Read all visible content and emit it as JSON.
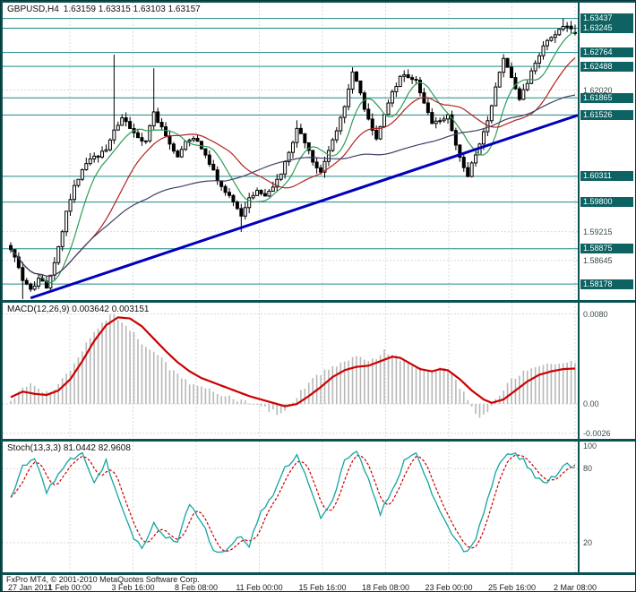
{
  "header": {
    "symbol": "GBPUSD,H4",
    "ohlc": "1.63159 1.63315 1.63103 1.63157"
  },
  "footer": {
    "copyright": "FxPro MT4, © 2001-2010 MetaQuotes Software Corp."
  },
  "colors": {
    "frame": "#0b5353",
    "grid": "#d9d9d9",
    "level_line": "#1d8a84",
    "badge_bg": "#0e6262",
    "badge_text": "#ffffff",
    "candle_border": "#000000",
    "candle_up_fill": "#ffffff",
    "candle_down_fill": "#000000",
    "ma_fast": "#2e9b57",
    "ma_mid": "#b22222",
    "ma_slow": "#3f3f66",
    "trend_line": "#0000bb",
    "macd_hist": "#b8b8b8",
    "macd_signal": "#cc0000",
    "stoch_main": "#12a5a0",
    "stoch_signal": "#cc0000"
  },
  "chart_data": [
    {
      "type": "candlestick",
      "title": "GBPUSD,H4",
      "display": "GBPUSD,H4 1.63159 1.63315 1.63103 1.63157",
      "current": {
        "open": 1.63159,
        "high": 1.63315,
        "low": 1.63103,
        "close": 1.63157
      },
      "x_labels": [
        "27 Jan 2011",
        "1 Feb 00:00",
        "3 Feb 16:00",
        "8 Feb 08:00",
        "11 Feb 00:00",
        "15 Feb 16:00",
        "18 Feb 08:00",
        "23 Feb 00:00",
        "25 Feb 16:00",
        "2 Mar 08:00"
      ],
      "y_range": [
        1.5786,
        1.6375
      ],
      "candle_count": 143,
      "close_path": [
        [
          0,
          1.5885
        ],
        [
          1,
          1.5868
        ],
        [
          3,
          1.5828
        ],
        [
          5,
          1.5805
        ],
        [
          7,
          1.5828
        ],
        [
          9,
          1.5812
        ],
        [
          10,
          1.5832
        ],
        [
          12,
          1.5888
        ],
        [
          14,
          1.5962
        ],
        [
          16,
          1.6012
        ],
        [
          18,
          1.6046
        ],
        [
          20,
          1.6066
        ],
        [
          22,
          1.6072
        ],
        [
          24,
          1.6082
        ],
        [
          26,
          1.6122
        ],
        [
          28,
          1.615
        ],
        [
          30,
          1.613
        ],
        [
          32,
          1.611
        ],
        [
          34,
          1.61
        ],
        [
          36,
          1.6155
        ],
        [
          38,
          1.613
        ],
        [
          40,
          1.6096
        ],
        [
          42,
          1.607
        ],
        [
          44,
          1.6096
        ],
        [
          46,
          1.611
        ],
        [
          48,
          1.609
        ],
        [
          50,
          1.6056
        ],
        [
          52,
          1.6026
        ],
        [
          54,
          1.6
        ],
        [
          56,
          1.598
        ],
        [
          58,
          1.595
        ],
        [
          60,
          1.5986
        ],
        [
          62,
          1.6006
        ],
        [
          64,
          1.599
        ],
        [
          66,
          1.6006
        ],
        [
          68,
          1.6036
        ],
        [
          70,
          1.6076
        ],
        [
          72,
          1.6126
        ],
        [
          74,
          1.61
        ],
        [
          76,
          1.606
        ],
        [
          78,
          1.604
        ],
        [
          80,
          1.6086
        ],
        [
          82,
          1.612
        ],
        [
          84,
          1.617
        ],
        [
          86,
          1.6236
        ],
        [
          88,
          1.6196
        ],
        [
          90,
          1.614
        ],
        [
          92,
          1.6106
        ],
        [
          94,
          1.6156
        ],
        [
          96,
          1.6196
        ],
        [
          98,
          1.6226
        ],
        [
          100,
          1.623
        ],
        [
          102,
          1.622
        ],
        [
          104,
          1.618
        ],
        [
          106,
          1.614
        ],
        [
          108,
          1.614
        ],
        [
          110,
          1.615
        ],
        [
          112,
          1.609
        ],
        [
          114,
          1.6046
        ],
        [
          115,
          1.6032
        ],
        [
          116,
          1.6056
        ],
        [
          118,
          1.6096
        ],
        [
          120,
          1.614
        ],
        [
          122,
          1.621
        ],
        [
          124,
          1.6262
        ],
        [
          126,
          1.6226
        ],
        [
          128,
          1.6186
        ],
        [
          130,
          1.6216
        ],
        [
          132,
          1.6256
        ],
        [
          134,
          1.6286
        ],
        [
          136,
          1.6306
        ],
        [
          138,
          1.632
        ],
        [
          140,
          1.633
        ],
        [
          141,
          1.6322
        ],
        [
          142,
          1.63157
        ]
      ],
      "extremes": [
        {
          "i": 3,
          "low": 1.5788
        },
        {
          "i": 26,
          "high": 1.6272
        },
        {
          "i": 36,
          "high": 1.6245
        },
        {
          "i": 58,
          "low": 1.5921
        },
        {
          "i": 72,
          "high": 1.6142
        },
        {
          "i": 86,
          "high": 1.6247
        },
        {
          "i": 115,
          "low": 1.6029
        },
        {
          "i": 124,
          "high": 1.6273
        },
        {
          "i": 139,
          "high": 1.6344
        }
      ],
      "level_lines": [
        "1.63437",
        "1.63245",
        "1.62764",
        "1.62488",
        "1.61865",
        "1.61526",
        "1.60311",
        "1.59800",
        "1.58875",
        "1.58178"
      ],
      "grid_levels": [
        "1.62020",
        "1.59215",
        "1.58645"
      ],
      "trend_line": {
        "from_index": 5,
        "from_price": 1.579,
        "to_index": 142,
        "to_price": 1.6152
      },
      "moving_average_periods": {
        "fast": 8,
        "mid": 21,
        "slow": 55
      }
    },
    {
      "type": "line+bar",
      "title": "MACD(12,26,9)",
      "display": "MACD(12,26,9) 0.003642 0.003151",
      "macd_value": 0.003642,
      "signal_value": 0.003151,
      "y_tick_labels": [
        "0.0080",
        "0.00",
        "-0.0026"
      ],
      "y_tick_values": [
        0.008,
        0.0,
        -0.0026
      ],
      "y_range": [
        -0.0031,
        0.009
      ],
      "histogram_path": [
        [
          0,
          0.0004
        ],
        [
          3,
          0.0013
        ],
        [
          5,
          0.0018
        ],
        [
          8,
          0.001
        ],
        [
          11,
          0.0013
        ],
        [
          14,
          0.0026
        ],
        [
          17,
          0.0042
        ],
        [
          20,
          0.006
        ],
        [
          23,
          0.0072
        ],
        [
          25,
          0.008
        ],
        [
          28,
          0.0074
        ],
        [
          31,
          0.0062
        ],
        [
          34,
          0.0051
        ],
        [
          37,
          0.0043
        ],
        [
          40,
          0.0032
        ],
        [
          43,
          0.0022
        ],
        [
          46,
          0.0018
        ],
        [
          49,
          0.0015
        ],
        [
          52,
          0.001
        ],
        [
          55,
          0.0006
        ],
        [
          58,
          0.0002
        ],
        [
          61,
          0.0
        ],
        [
          64,
          -0.0004
        ],
        [
          67,
          -0.0008
        ],
        [
          69,
          -0.0006
        ],
        [
          71,
          0.0002
        ],
        [
          73,
          0.0012
        ],
        [
          76,
          0.0022
        ],
        [
          79,
          0.003
        ],
        [
          82,
          0.0035
        ],
        [
          85,
          0.004
        ],
        [
          88,
          0.0042
        ],
        [
          91,
          0.0039
        ],
        [
          94,
          0.0047
        ],
        [
          96,
          0.0044
        ],
        [
          99,
          0.0038
        ],
        [
          102,
          0.0033
        ],
        [
          105,
          0.0028
        ],
        [
          107,
          0.003
        ],
        [
          109,
          0.0033
        ],
        [
          111,
          0.0026
        ],
        [
          114,
          0.001
        ],
        [
          116,
          -0.0004
        ],
        [
          118,
          -0.0011
        ],
        [
          120,
          -0.0006
        ],
        [
          122,
          0.0004
        ],
        [
          124,
          0.0012
        ],
        [
          126,
          0.0022
        ],
        [
          129,
          0.0028
        ],
        [
          132,
          0.0031
        ],
        [
          135,
          0.0034
        ],
        [
          138,
          0.0036
        ],
        [
          140,
          0.0037
        ],
        [
          142,
          0.003642
        ]
      ],
      "signal_path": [
        [
          0,
          0.0006
        ],
        [
          3,
          0.0011
        ],
        [
          6,
          0.0009
        ],
        [
          9,
          0.0008
        ],
        [
          12,
          0.0012
        ],
        [
          15,
          0.0022
        ],
        [
          18,
          0.0038
        ],
        [
          21,
          0.0056
        ],
        [
          24,
          0.007
        ],
        [
          27,
          0.0077
        ],
        [
          30,
          0.0076
        ],
        [
          33,
          0.0069
        ],
        [
          36,
          0.0058
        ],
        [
          39,
          0.0047
        ],
        [
          42,
          0.0037
        ],
        [
          45,
          0.0029
        ],
        [
          48,
          0.0023
        ],
        [
          51,
          0.0019
        ],
        [
          54,
          0.0015
        ],
        [
          57,
          0.0011
        ],
        [
          60,
          0.0007
        ],
        [
          63,
          0.0004
        ],
        [
          66,
          0.0001
        ],
        [
          69,
          -0.0002
        ],
        [
          72,
          0.0
        ],
        [
          75,
          0.0007
        ],
        [
          78,
          0.0015
        ],
        [
          81,
          0.0024
        ],
        [
          84,
          0.003
        ],
        [
          87,
          0.0033
        ],
        [
          90,
          0.0034
        ],
        [
          93,
          0.0038
        ],
        [
          96,
          0.0042
        ],
        [
          98,
          0.0041
        ],
        [
          100,
          0.0037
        ],
        [
          103,
          0.0031
        ],
        [
          106,
          0.0029
        ],
        [
          108,
          0.0031
        ],
        [
          110,
          0.003
        ],
        [
          113,
          0.0022
        ],
        [
          116,
          0.0012
        ],
        [
          119,
          0.0004
        ],
        [
          121,
          0.0001
        ],
        [
          124,
          0.0004
        ],
        [
          127,
          0.0012
        ],
        [
          130,
          0.002
        ],
        [
          133,
          0.0026
        ],
        [
          136,
          0.0029
        ],
        [
          139,
          0.0031
        ],
        [
          142,
          0.003151
        ]
      ]
    },
    {
      "type": "line",
      "title": "Stoch(13,3,3)",
      "display": "Stoch(13,3,3) 81.0442 82.9608",
      "k_value": 81.0442,
      "d_value": 82.9608,
      "y_tick_labels": [
        "100",
        "80",
        "20"
      ],
      "y_tick_values": [
        100,
        80,
        20
      ],
      "level_lines": [
        80,
        20
      ],
      "y_range": [
        -4,
        102
      ],
      "k_path": [
        [
          0,
          55
        ],
        [
          3,
          82
        ],
        [
          6,
          90
        ],
        [
          9,
          62
        ],
        [
          12,
          75
        ],
        [
          15,
          88
        ],
        [
          18,
          92
        ],
        [
          21,
          70
        ],
        [
          24,
          86
        ],
        [
          27,
          58
        ],
        [
          30,
          30
        ],
        [
          33,
          14
        ],
        [
          36,
          36
        ],
        [
          39,
          24
        ],
        [
          42,
          20
        ],
        [
          45,
          52
        ],
        [
          48,
          38
        ],
        [
          51,
          15
        ],
        [
          54,
          12
        ],
        [
          57,
          26
        ],
        [
          60,
          18
        ],
        [
          63,
          45
        ],
        [
          66,
          58
        ],
        [
          69,
          80
        ],
        [
          72,
          91
        ],
        [
          75,
          68
        ],
        [
          78,
          38
        ],
        [
          81,
          55
        ],
        [
          84,
          86
        ],
        [
          87,
          95
        ],
        [
          90,
          72
        ],
        [
          93,
          44
        ],
        [
          96,
          62
        ],
        [
          99,
          86
        ],
        [
          102,
          93
        ],
        [
          105,
          68
        ],
        [
          108,
          44
        ],
        [
          111,
          28
        ],
        [
          114,
          11
        ],
        [
          117,
          22
        ],
        [
          120,
          56
        ],
        [
          123,
          86
        ],
        [
          126,
          93
        ],
        [
          129,
          87
        ],
        [
          132,
          74
        ],
        [
          135,
          69
        ],
        [
          138,
          78
        ],
        [
          140,
          84
        ],
        [
          142,
          81.0442
        ]
      ]
    }
  ]
}
